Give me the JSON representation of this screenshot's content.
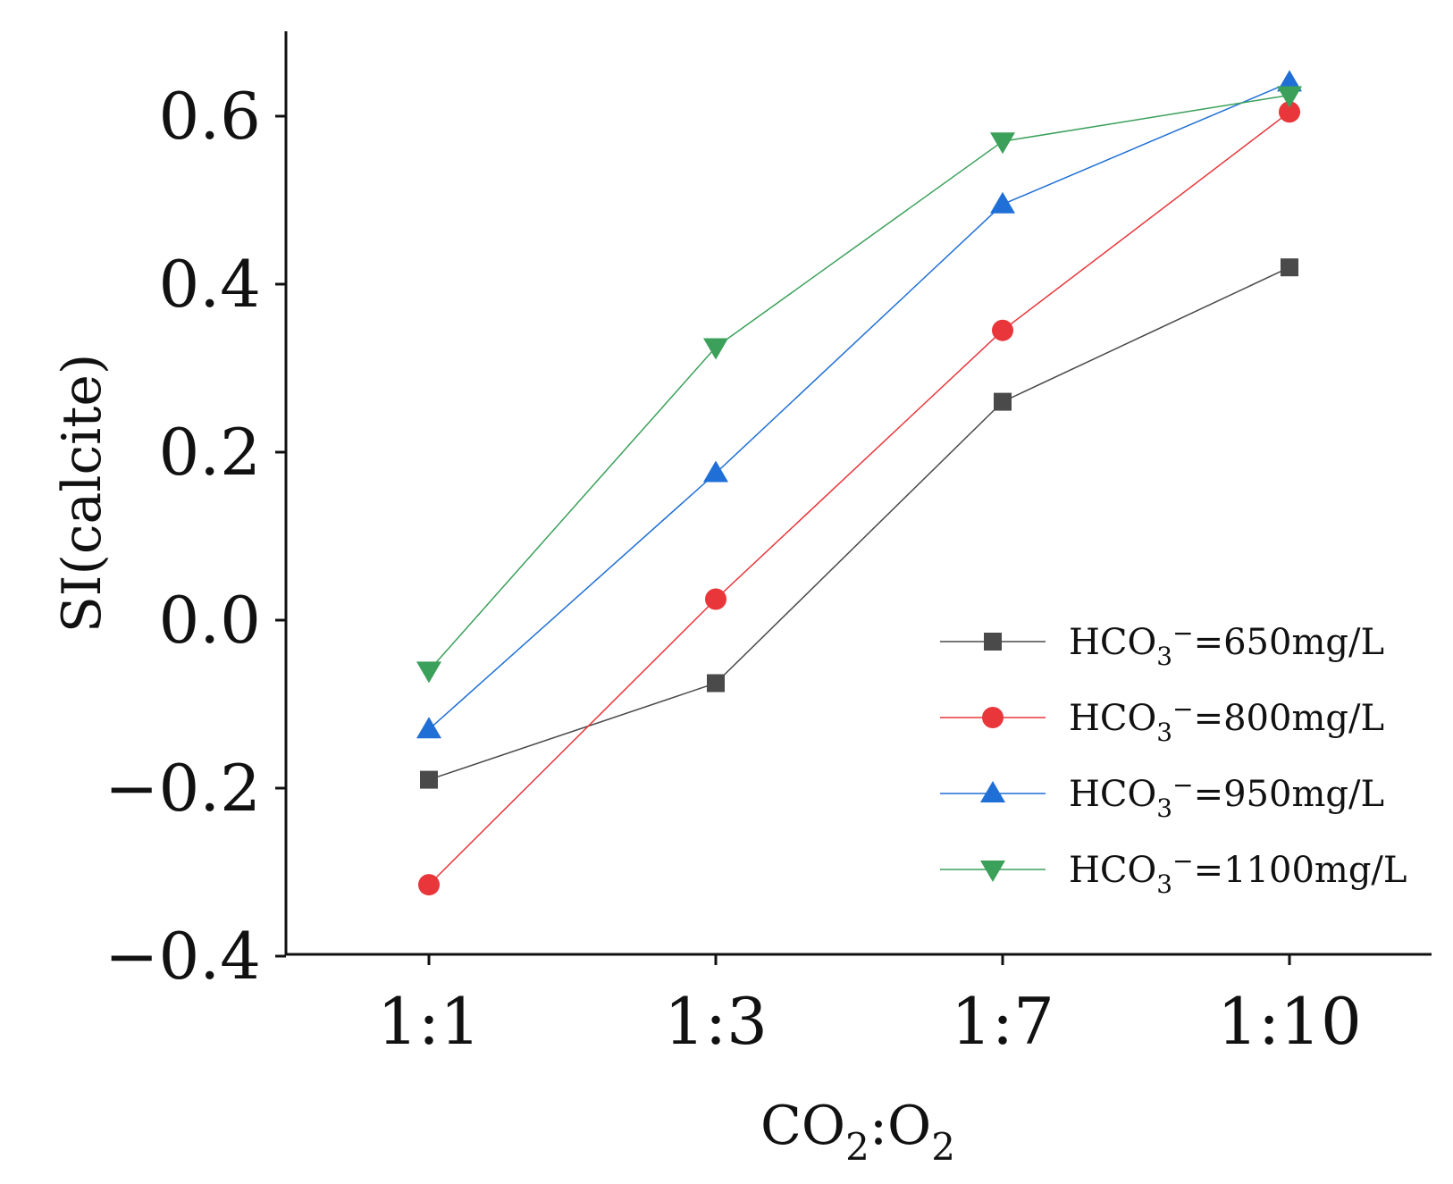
{
  "chart_data": {
    "type": "line",
    "title": "",
    "xlabel": {
      "main": "CO",
      "sub1": "2",
      "mid": ":O",
      "sub2": "2"
    },
    "ylabel": "SI(calcite)",
    "categories": [
      "1:1",
      "1:3",
      "1:7",
      "1:10"
    ],
    "ylim": [
      -0.4,
      0.7
    ],
    "yticks": [
      -0.4,
      -0.2,
      0.0,
      0.2,
      0.4,
      0.6
    ],
    "ytick_labels": [
      "−0.4",
      "−0.2",
      "0.0",
      "0.2",
      "0.4",
      "0.6"
    ],
    "legend_position": "lower-right",
    "series": [
      {
        "name": "HCO3−=650mg/L",
        "legend": {
          "pre": "HCO",
          "sub": "3",
          "sup": "−",
          "post": "=650mg/L"
        },
        "color": "#4a4a4a",
        "marker": "square",
        "values": [
          -0.19,
          -0.075,
          0.26,
          0.42
        ]
      },
      {
        "name": "HCO3−=800mg/L",
        "legend": {
          "pre": "HCO",
          "sub": "3",
          "sup": "−",
          "post": "=800mg/L"
        },
        "color": "#e8363b",
        "marker": "circle",
        "values": [
          -0.315,
          0.025,
          0.345,
          0.605
        ]
      },
      {
        "name": "HCO3−=950mg/L",
        "legend": {
          "pre": "HCO",
          "sub": "3",
          "sup": "−",
          "post": "=950mg/L"
        },
        "color": "#1f6fd6",
        "marker": "triangle-up",
        "values": [
          -0.13,
          0.175,
          0.495,
          0.64
        ]
      },
      {
        "name": "HCO3−=1100mg/L",
        "legend": {
          "pre": "HCO",
          "sub": "3",
          "sup": "−",
          "post": "=1100mg/L"
        },
        "color": "#3aa05a",
        "marker": "triangle-down",
        "values": [
          -0.06,
          0.325,
          0.57,
          0.625
        ]
      }
    ]
  }
}
